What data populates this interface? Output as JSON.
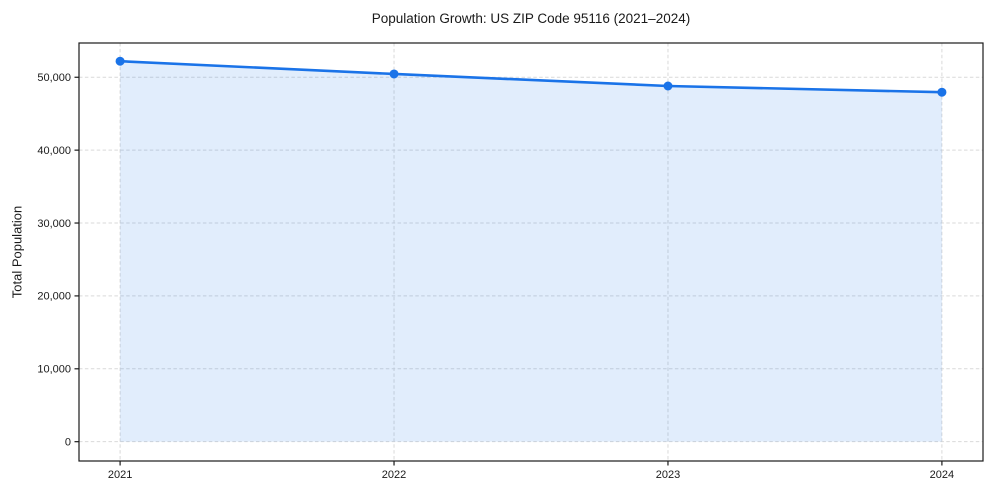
{
  "chart_data": {
    "type": "area",
    "title": "Population Growth: US ZIP Code 95116 (2021–2024)",
    "xlabel": "",
    "ylabel": "Total Population",
    "series": [
      {
        "name": "Total Population",
        "x": [
          2021,
          2022,
          2023,
          2024
        ],
        "values": [
          52200,
          50450,
          48800,
          47950
        ]
      }
    ],
    "fill_baseline": 0,
    "xlim": [
      2020.85,
      2024.15
    ],
    "ylim": [
      -2650,
      54700
    ],
    "x_ticks": [
      2021,
      2022,
      2023,
      2024
    ],
    "x_tick_labels": [
      "2021",
      "2022",
      "2023",
      "2024"
    ],
    "y_ticks": [
      0,
      10000,
      20000,
      30000,
      40000,
      50000
    ],
    "y_tick_labels": [
      "0",
      "10,000",
      "20,000",
      "30,000",
      "40,000",
      "50,000"
    ],
    "grid": true,
    "grid_style": "dashed",
    "legend": false,
    "colors": {
      "line": "#1a73e8",
      "marker": "#1a73e8",
      "fill": "rgba(26,115,232,0.13)",
      "grid": "#d9d9d9",
      "spine": "#1a1a1a",
      "text": "#1a1a1a"
    }
  }
}
